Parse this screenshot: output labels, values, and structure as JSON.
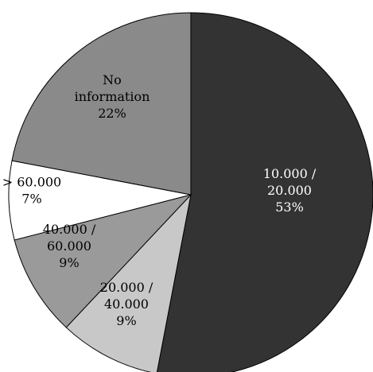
{
  "chart_data": {
    "type": "pie",
    "start_angle_deg": 0,
    "direction": "clockwise",
    "slices": [
      {
        "label_lines": [
          "10.000 /",
          "20.000",
          "53%"
        ],
        "value": 53,
        "color": "#333333",
        "text_color": "#ffffff"
      },
      {
        "label_lines": [
          "20.000 /",
          "40.000",
          "9%"
        ],
        "value": 9,
        "color": "#c8c8c8",
        "text_color": "#000000"
      },
      {
        "label_lines": [
          "40.000 /",
          "60.000",
          "9%"
        ],
        "value": 9,
        "color": "#9a9a9a",
        "text_color": "#000000"
      },
      {
        "label_lines": [
          "> 60.000",
          "7%"
        ],
        "value": 7,
        "color": "#ffffff",
        "text_color": "#000000"
      },
      {
        "label_lines": [
          "No",
          "information",
          "22%"
        ],
        "value": 22,
        "color": "#8a8a8a",
        "text_color": "#000000"
      }
    ]
  }
}
